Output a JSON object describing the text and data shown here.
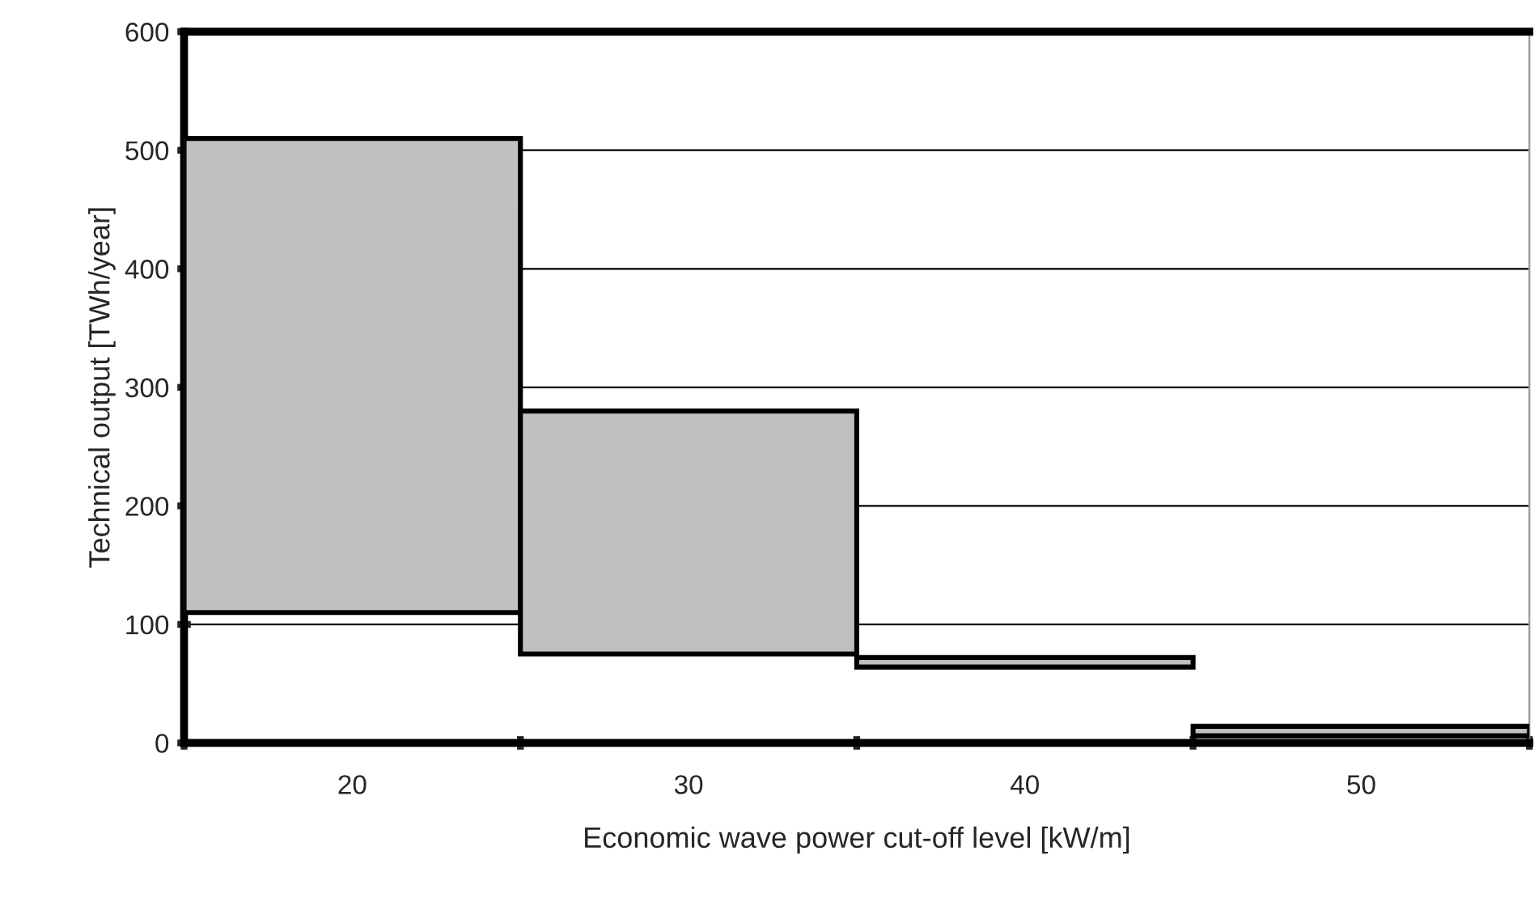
{
  "chart_data": {
    "type": "bar",
    "xlabel": "Economic wave power cut-off level [kW/m]",
    "ylabel": "Technical output [TWh/year]",
    "categories": [
      "20",
      "30",
      "40",
      "50"
    ],
    "base": [
      110,
      75,
      64,
      6
    ],
    "values": [
      400,
      205,
      8,
      8
    ],
    "color": "#c0c0c0",
    "ylim": [
      0,
      600
    ],
    "yticks": [
      0,
      100,
      200,
      300,
      400,
      500,
      600
    ],
    "grid": "y",
    "legend": false
  }
}
